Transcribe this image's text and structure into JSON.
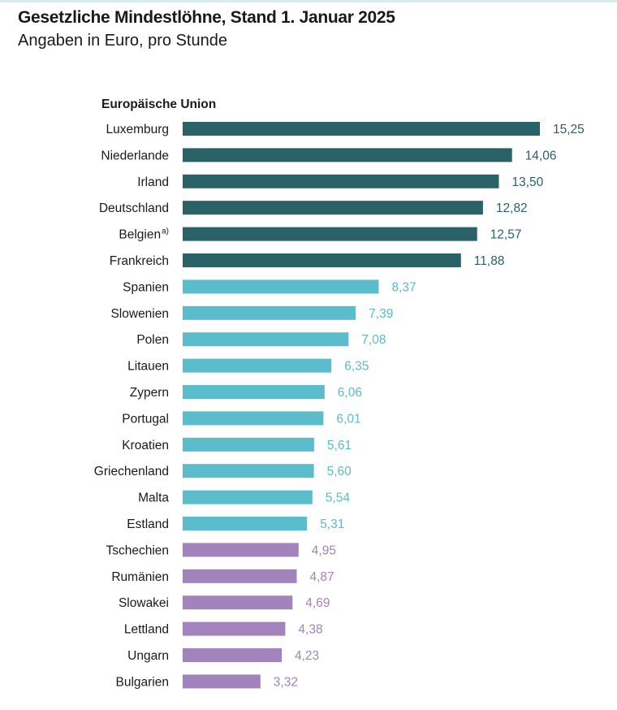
{
  "header": {
    "title": "Gesetzliche Mindestlöhne, Stand 1. Januar 2025",
    "subtitle": "Angaben in Euro, pro Stunde"
  },
  "colors": {
    "high": "#2a6267",
    "mid": "#5bbccb",
    "low": "#a283bb",
    "high_text": "#2a6267",
    "mid_text": "#5bbccb",
    "low_text": "#a283bb"
  },
  "chart_data": {
    "type": "bar",
    "orientation": "horizontal",
    "title": "Gesetzliche Mindestlöhne, Stand 1. Januar 2025",
    "subtitle": "Angaben in Euro, pro Stunde",
    "group_label": "Europäische Union",
    "categories": [
      "Luxemburg",
      "Niederlande",
      "Irland",
      "Deutschland",
      "Belgien",
      "Frankreich",
      "Spanien",
      "Slowenien",
      "Polen",
      "Litauen",
      "Zypern",
      "Portugal",
      "Kroatien",
      "Griechenland",
      "Malta",
      "Estland",
      "Tschechien",
      "Rumänien",
      "Slowakei",
      "Lettland",
      "Ungarn",
      "Bulgarien"
    ],
    "footnotes": [
      "",
      "",
      "",
      "",
      "a)",
      "",
      "",
      "",
      "",
      "",
      "",
      "",
      "",
      "",
      "",
      "",
      "",
      "",
      "",
      "",
      "",
      ""
    ],
    "values": [
      15.25,
      14.06,
      13.5,
      12.82,
      12.57,
      11.88,
      8.37,
      7.39,
      7.08,
      6.35,
      6.06,
      6.01,
      5.61,
      5.6,
      5.54,
      5.31,
      4.95,
      4.87,
      4.69,
      4.38,
      4.23,
      3.32
    ],
    "value_labels": [
      "15,25",
      "14,06",
      "13,50",
      "12,82",
      "12,57",
      "11,88",
      "8,37",
      "7,39",
      "7,08",
      "6,35",
      "6,06",
      "6,01",
      "5,61",
      "5,60",
      "5,54",
      "5,31",
      "4,95",
      "4,87",
      "4,69",
      "4,38",
      "4,23",
      "3,32"
    ],
    "tiers": [
      "high",
      "high",
      "high",
      "high",
      "high",
      "high",
      "mid",
      "mid",
      "mid",
      "mid",
      "mid",
      "mid",
      "mid",
      "mid",
      "mid",
      "mid",
      "low",
      "low",
      "low",
      "low",
      "low",
      "low"
    ],
    "xlim": [
      0,
      15.25
    ],
    "grid": false,
    "legend": "none"
  }
}
